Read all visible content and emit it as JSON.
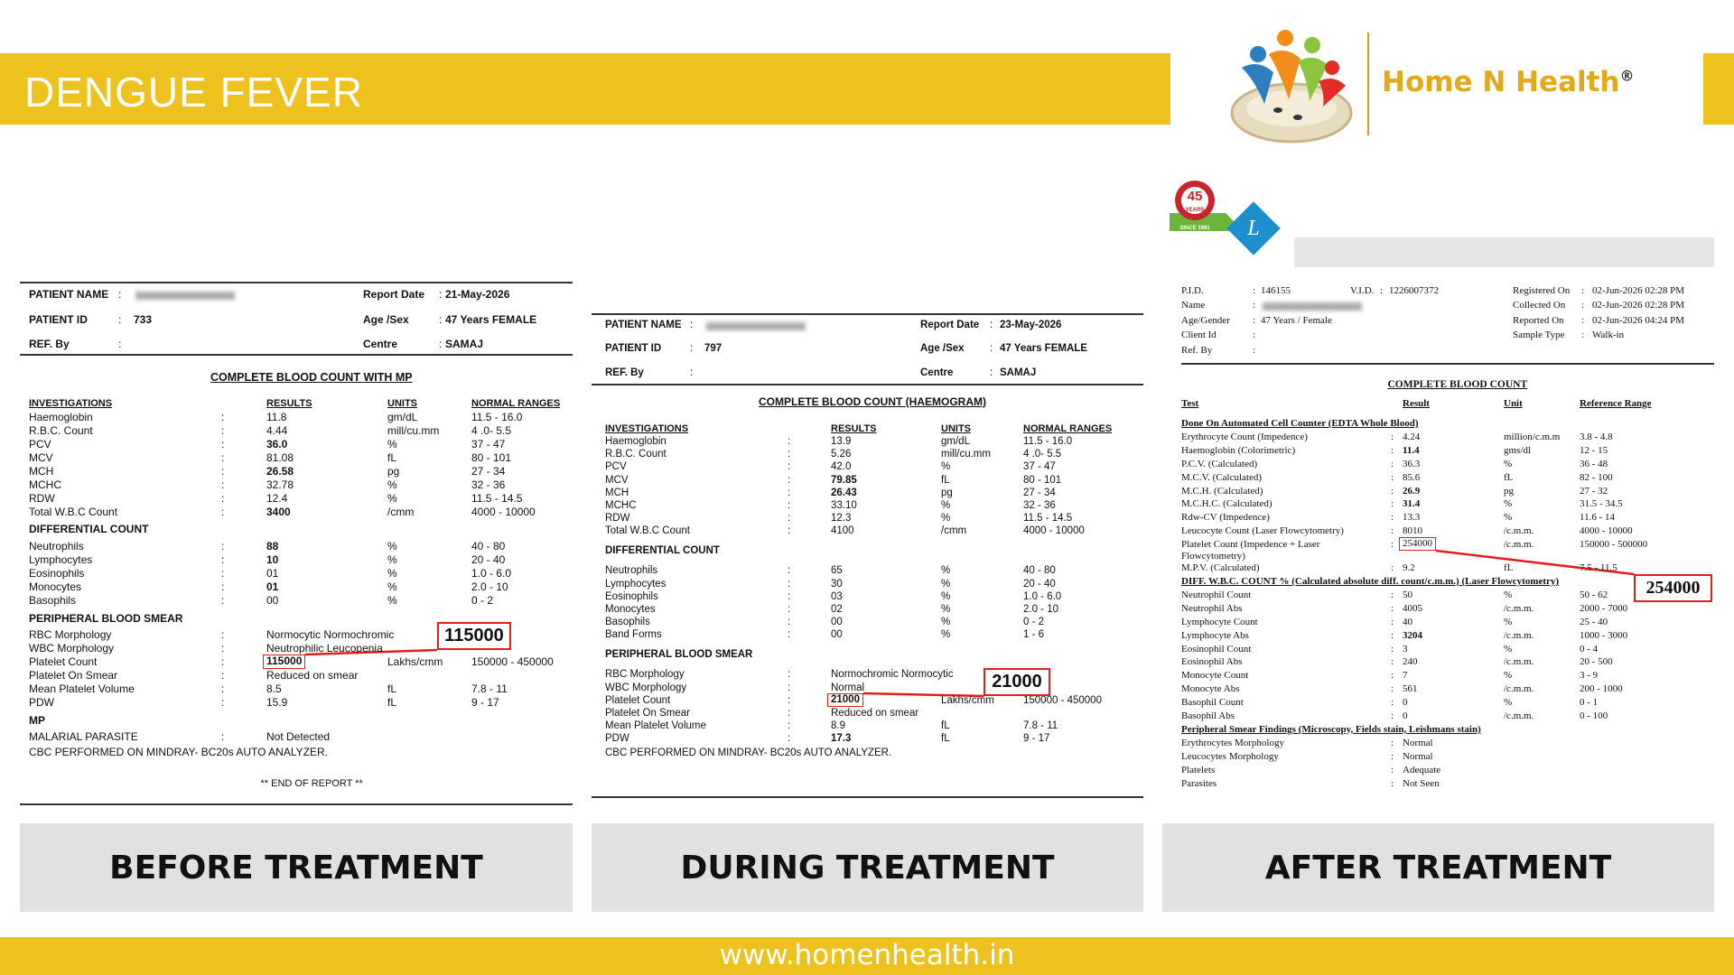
{
  "header": {
    "title": "DENGUE FEVER",
    "brand": "Home N Health",
    "reg": "®"
  },
  "badge": {
    "number": "45",
    "word": "YEARS",
    "since": "SINCE 1981"
  },
  "footer": "www.homenhealth.in",
  "reports": [
    {
      "caption": "BEFORE TREATMENT",
      "info": [
        {
          "label": "PATIENT NAME"
        },
        {
          "label": "PATIENT ID",
          "value": "733"
        },
        {
          "label": "REF. By"
        },
        {
          "label": "Report Date",
          "value": "21-May-2026"
        },
        {
          "label": "Age /Sex",
          "value": "47 Years   FEMALE"
        },
        {
          "label": "Centre",
          "value": "SAMAJ"
        }
      ],
      "title": "COMPLETE BLOOD COUNT WITH MP",
      "columns": [
        "INVESTIGATIONS",
        "RESULTS",
        "UNITS",
        "NORMAL RANGES"
      ],
      "rows": [
        {
          "test": "Haemoglobin",
          "result": "11.8",
          "unit": "gm/dL",
          "range": "11.5 - 16.0"
        },
        {
          "test": "R.B.C. Count",
          "result": "4.44",
          "unit": "mill/cu.mm",
          "range": "4 .0- 5.5"
        },
        {
          "test": "PCV",
          "result": "36.0",
          "bold": true,
          "unit": "%",
          "range": "37 - 47"
        },
        {
          "test": "MCV",
          "result": "81.08",
          "unit": "fL",
          "range": "80 - 101"
        },
        {
          "test": "MCH",
          "result": "26.58",
          "bold": true,
          "unit": "pg",
          "range": "27 - 34"
        },
        {
          "test": "MCHC",
          "result": "32.78",
          "unit": "%",
          "range": "32 - 36"
        },
        {
          "test": "RDW",
          "result": "12.4",
          "unit": "%",
          "range": "11.5 - 14.5"
        },
        {
          "test": "Total W.B.C Count",
          "result": "3400",
          "bold": true,
          "unit": "/cmm",
          "range": "4000 - 10000"
        },
        {
          "section": "DIFFERENTIAL COUNT"
        },
        {
          "test": "Neutrophils",
          "result": "88",
          "bold": true,
          "unit": "%",
          "range": "40 - 80"
        },
        {
          "test": "Lymphocytes",
          "result": "10",
          "bold": true,
          "unit": "%",
          "range": "20 - 40"
        },
        {
          "test": "Eosinophils",
          "result": "01",
          "unit": "%",
          "range": "1.0 - 6.0"
        },
        {
          "test": "Monocytes",
          "result": "01",
          "bold": true,
          "unit": "%",
          "range": "2.0 - 10"
        },
        {
          "test": "Basophils",
          "result": "00",
          "unit": "%",
          "range": "0 - 2"
        },
        {
          "section": "PERIPHERAL BLOOD SMEAR"
        },
        {
          "test": "RBC Morphology",
          "result": "Normocytic Normochromic"
        },
        {
          "test": "WBC Morphology",
          "result": "Neutrophilic Leucopenia"
        },
        {
          "test": "Platelet Count",
          "result": "115000",
          "bold": true,
          "boxed": true,
          "unit": "Lakhs/cmm",
          "range": "150000 - 450000"
        },
        {
          "test": "Platelet On Smear",
          "result": "Reduced on smear"
        },
        {
          "test": "Mean Platelet Volume",
          "result": "8.5",
          "unit": "fL",
          "range": "7.8 - 11"
        },
        {
          "test": "PDW",
          "result": "15.9",
          "unit": "fL",
          "range": "9 - 17"
        },
        {
          "section": "MP"
        },
        {
          "test": "MALARIAL PARASITE",
          "result": "Not Detected"
        }
      ],
      "note": "CBC PERFORMED ON MINDRAY- BC20s  AUTO ANALYZER.",
      "end": "** END OF REPORT **",
      "callout": "115000"
    },
    {
      "caption": "DURING TREATMENT",
      "info": [
        {
          "label": "PATIENT NAME"
        },
        {
          "label": "PATIENT ID",
          "value": "797"
        },
        {
          "label": "REF. By"
        },
        {
          "label": "Report Date",
          "value": "23-May-2026"
        },
        {
          "label": "Age /Sex",
          "value": "47 Years   FEMALE"
        },
        {
          "label": "Centre",
          "value": "SAMAJ"
        }
      ],
      "title": "COMPLETE BLOOD COUNT (HAEMOGRAM)",
      "columns": [
        "INVESTIGATIONS",
        "RESULTS",
        "UNITS",
        "NORMAL RANGES"
      ],
      "rows": [
        {
          "test": "Haemoglobin",
          "result": "13.9",
          "unit": "gm/dL",
          "range": "11.5 - 16.0"
        },
        {
          "test": "R.B.C. Count",
          "result": "5.26",
          "unit": "mill/cu.mm",
          "range": "4 .0- 5.5"
        },
        {
          "test": "PCV",
          "result": "42.0",
          "unit": "%",
          "range": "37 - 47"
        },
        {
          "test": "MCV",
          "result": "79.85",
          "bold": true,
          "unit": "fL",
          "range": "80 - 101"
        },
        {
          "test": "MCH",
          "result": "26.43",
          "bold": true,
          "unit": "pg",
          "range": "27 - 34"
        },
        {
          "test": "MCHC",
          "result": "33.10",
          "unit": "%",
          "range": "32 - 36"
        },
        {
          "test": "RDW",
          "result": "12.3",
          "unit": "%",
          "range": "11.5 - 14.5"
        },
        {
          "test": "Total W.B.C Count",
          "result": "4100",
          "unit": "/cmm",
          "range": "4000 - 10000"
        },
        {
          "section": "DIFFERENTIAL COUNT"
        },
        {
          "test": "Neutrophils",
          "result": "65",
          "unit": "%",
          "range": "40 - 80"
        },
        {
          "test": "Lymphocytes",
          "result": "30",
          "unit": "%",
          "range": "20 - 40"
        },
        {
          "test": "Eosinophils",
          "result": "03",
          "unit": "%",
          "range": "1.0 - 6.0"
        },
        {
          "test": "Monocytes",
          "result": "02",
          "unit": "%",
          "range": "2.0 - 10"
        },
        {
          "test": "Basophils",
          "result": "00",
          "unit": "%",
          "range": "0 - 2"
        },
        {
          "test": "Band Forms",
          "result": "00",
          "unit": "%",
          "range": "1 - 6"
        },
        {
          "section": "PERIPHERAL BLOOD SMEAR"
        },
        {
          "test": "RBC Morphology",
          "result": "Normochromic  Normocytic"
        },
        {
          "test": "WBC Morphology",
          "result": "Normal"
        },
        {
          "test": "Platelet Count",
          "result": "21000",
          "bold": true,
          "boxed": true,
          "unit": "Lakhs/cmm",
          "range": "150000 - 450000"
        },
        {
          "test": "Platelet On Smear",
          "result": "Reduced on smear"
        },
        {
          "test": "Mean Platelet Volume",
          "result": "8.9",
          "unit": "fL",
          "range": "7.8 - 11"
        },
        {
          "test": "PDW",
          "result": "17.3",
          "bold": true,
          "unit": "fL",
          "range": "9 - 17"
        }
      ],
      "note": "CBC PERFORMED ON MINDRAY- BC20s  AUTO ANALYZER.",
      "callout": "21000"
    },
    {
      "caption": "AFTER TREATMENT",
      "info": [
        {
          "label": "P.I.D.",
          "value": "146155"
        },
        {
          "label": "V.I.D.",
          "value": "1226007372"
        },
        {
          "label": "Name"
        },
        {
          "label": "Age/Gender",
          "value": "47 Years / Female"
        },
        {
          "label": "Client Id"
        },
        {
          "label": "Ref. By"
        },
        {
          "label": "Registered On",
          "value": "02-Jun-2026 02:28 PM"
        },
        {
          "label": "Collected On",
          "value": "02-Jun-2026 02:28 PM"
        },
        {
          "label": "Reported On",
          "value": "02-Jun-2026 04:24 PM"
        },
        {
          "label": "Sample Type",
          "value": "Walk-in"
        }
      ],
      "title": "COMPLETE BLOOD COUNT",
      "columns": [
        "Test",
        "Result",
        "Unit",
        "Reference Range"
      ],
      "rows": [
        {
          "section": "Done On Automated Cell Counter (EDTA Whole Blood)"
        },
        {
          "test": "Erythrocyte Count (Impedence)",
          "result": "4.24",
          "unit": "million/c.m.m",
          "range": "3.8 - 4.8"
        },
        {
          "test": "Haemoglobin (Colorimetric)",
          "result": "11.4",
          "bold": true,
          "unit": "gms/dl",
          "range": "12 - 15"
        },
        {
          "test": "P.C.V. (Calculated)",
          "result": "36.3",
          "unit": "%",
          "range": "36 - 48"
        },
        {
          "test": "M.C.V. (Calculated)",
          "result": "85.6",
          "unit": "fL",
          "range": "82 - 100"
        },
        {
          "test": "M.C.H. (Calculated)",
          "result": "26.9",
          "bold": true,
          "unit": "pg",
          "range": "27 - 32"
        },
        {
          "test": "M.C.H.C. (Calculated)",
          "result": "31.4",
          "bold": true,
          "unit": "%",
          "range": "31.5 - 34.5"
        },
        {
          "test": "Rdw-CV (Impedence)",
          "result": "13.3",
          "unit": "%",
          "range": "11.6 - 14"
        },
        {
          "test": "Leucocyte Count (Laser Flowcytometry)",
          "result": "8010",
          "unit": "/c.m.m.",
          "range": "4000 - 10000"
        },
        {
          "test": "Platelet Count (Impedence + Laser Flowcytometry)",
          "result": "254000",
          "boxed": true,
          "unit": "/c.m.m.",
          "range": "150000 - 500000"
        },
        {
          "test": "M.P.V. (Calculated)",
          "result": "9.2",
          "unit": "fL",
          "range": "7.5 - 11.5"
        },
        {
          "section": "DIFF. W.B.C. COUNT % (Calculated absolute diff. count/c.m.m.)  (Laser Flowcytometry)"
        },
        {
          "test": "Neutrophil Count",
          "result": "50",
          "unit": "%",
          "range": "50 - 62"
        },
        {
          "test": "Neutrophil Abs",
          "result": "4005",
          "unit": "/c.m.m.",
          "range": "2000 - 7000"
        },
        {
          "test": "Lymphocyte Count",
          "result": "40",
          "unit": "%",
          "range": "25 - 40"
        },
        {
          "test": "Lymphocyte Abs",
          "result": "3204",
          "bold": true,
          "unit": "/c.m.m.",
          "range": "1000 - 3000"
        },
        {
          "test": "Eosinophil Count",
          "result": "3",
          "unit": "%",
          "range": "0 - 4"
        },
        {
          "test": "Eosinophil Abs",
          "result": "240",
          "unit": "/c.m.m.",
          "range": "20 - 500"
        },
        {
          "test": "Monocyte Count",
          "result": "7",
          "unit": "%",
          "range": "3 - 9"
        },
        {
          "test": "Monocyte Abs",
          "result": "561",
          "unit": "/c.m.m.",
          "range": "200 - 1000"
        },
        {
          "test": "Basophil Count",
          "result": "0",
          "unit": "%",
          "range": "0 - 1"
        },
        {
          "test": "Basophil Abs",
          "result": "0",
          "unit": "/c.m.m.",
          "range": "0 - 100"
        },
        {
          "section": "Peripheral Smear Findings (Microscopy, Fields stain, Leishmans stain)"
        },
        {
          "test": "Erythrocytes Morphology",
          "result": "Normal"
        },
        {
          "test": "Leucocytes Morphology",
          "result": "Normal"
        },
        {
          "test": "Platelets",
          "result": "Adequate"
        },
        {
          "test": "Parasites",
          "result": "Not Seen"
        }
      ],
      "callout": "254000"
    }
  ]
}
